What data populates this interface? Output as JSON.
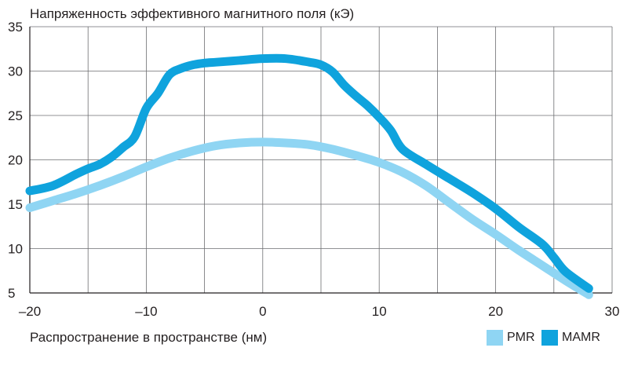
{
  "chart_data": {
    "type": "line",
    "title": "Напряженность эффективного магнитного поля (кЭ)",
    "xlabel": "Распространение в пространстве (нм)",
    "ylabel": "",
    "xlim": [
      -20,
      30
    ],
    "ylim": [
      5,
      35
    ],
    "x_ticks": [
      -20,
      -10,
      0,
      10,
      20,
      30
    ],
    "x_tick_labels": [
      "–20",
      "–10",
      "0",
      "10",
      "20",
      "30"
    ],
    "y_ticks": [
      5,
      10,
      15,
      20,
      25,
      30,
      35
    ],
    "y_tick_labels": [
      "5",
      "10",
      "15",
      "20",
      "25",
      "30",
      "35"
    ],
    "grid": true,
    "legend_position": "bottom-right",
    "series": [
      {
        "name": "PMR",
        "color": "#8fd5f3",
        "x": [
          -20,
          -18,
          -16,
          -14,
          -12,
          -10,
          -8,
          -6,
          -4,
          -2,
          0,
          2,
          4,
          6,
          8,
          10,
          12,
          14,
          16,
          18,
          20,
          22,
          24,
          26,
          28
        ],
        "y": [
          14.6,
          15.4,
          16.2,
          17.1,
          18.1,
          19.2,
          20.2,
          21.0,
          21.6,
          21.9,
          22.0,
          21.9,
          21.7,
          21.2,
          20.5,
          19.7,
          18.6,
          17.1,
          15.2,
          13.3,
          11.6,
          9.8,
          8.1,
          6.4,
          4.8
        ]
      },
      {
        "name": "MAMR",
        "color": "#0fa3dd",
        "x": [
          -20,
          -18,
          -16,
          -15,
          -14,
          -13,
          -12,
          -11,
          -10,
          -9,
          -8,
          -7,
          -6,
          -5,
          -4,
          -2,
          0,
          2,
          4,
          5,
          6,
          7,
          8,
          9,
          10,
          11,
          12,
          14,
          16,
          18,
          20,
          22,
          24,
          25,
          26,
          28
        ],
        "y": [
          16.5,
          17.1,
          18.4,
          19.0,
          19.5,
          20.3,
          21.4,
          22.6,
          25.8,
          27.5,
          29.6,
          30.3,
          30.7,
          30.9,
          31.0,
          31.2,
          31.4,
          31.4,
          31.0,
          30.7,
          29.9,
          28.4,
          27.2,
          26.1,
          24.8,
          23.3,
          21.2,
          19.5,
          17.9,
          16.3,
          14.5,
          12.4,
          10.5,
          9.0,
          7.4,
          5.5
        ]
      }
    ]
  }
}
